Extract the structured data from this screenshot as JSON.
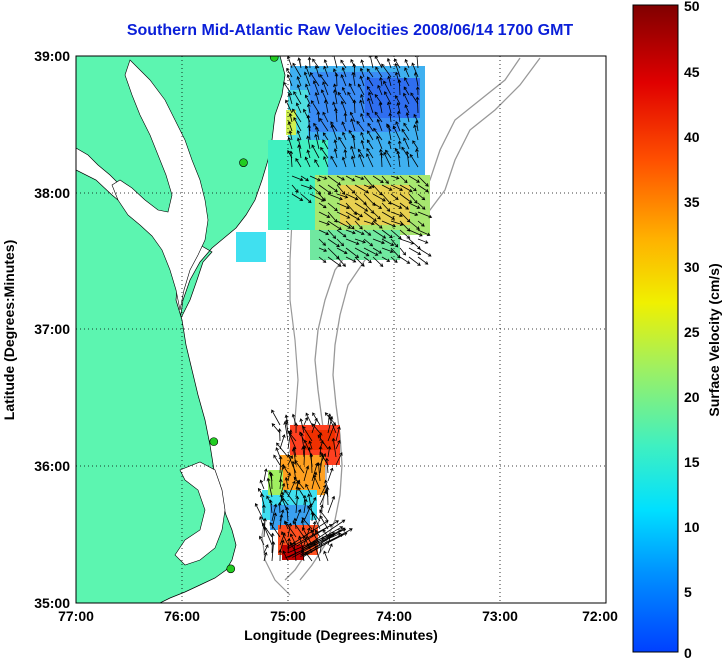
{
  "title": "Southern Mid-Atlantic Raw Velocities 2008/06/14 1700 GMT",
  "x_axis": {
    "label": "Longitude (Degrees:Minutes)",
    "ticks": [
      "77:00",
      "76:00",
      "75:00",
      "74:00",
      "73:00",
      "72:00"
    ]
  },
  "y_axis": {
    "label": "Latitude (Degrees:Minutes)",
    "ticks": [
      "39:00",
      "38:00",
      "37:00",
      "36:00",
      "35:00"
    ]
  },
  "colorbar": {
    "label": "Surface Velocity (cm/s)",
    "ticks": [
      "50",
      "45",
      "40",
      "35",
      "30",
      "25",
      "20",
      "15",
      "10",
      "5",
      "0"
    ],
    "min": 0,
    "max": 50,
    "colormap": "jet"
  },
  "colors": {
    "land": "#5cf5b0",
    "title": "#0a1fd8",
    "station_marker": "#22cc22"
  },
  "chart_data": {
    "type": "map",
    "lon_range": [
      -77,
      -72
    ],
    "lat_range": [
      35,
      39
    ],
    "grid": true,
    "stations": [
      {
        "lon": -75.13,
        "lat": 38.99
      },
      {
        "lon": -75.42,
        "lat": 38.22
      },
      {
        "lon": -75.7,
        "lat": 36.18
      },
      {
        "lon": -75.54,
        "lat": 35.25
      }
    ]
  }
}
